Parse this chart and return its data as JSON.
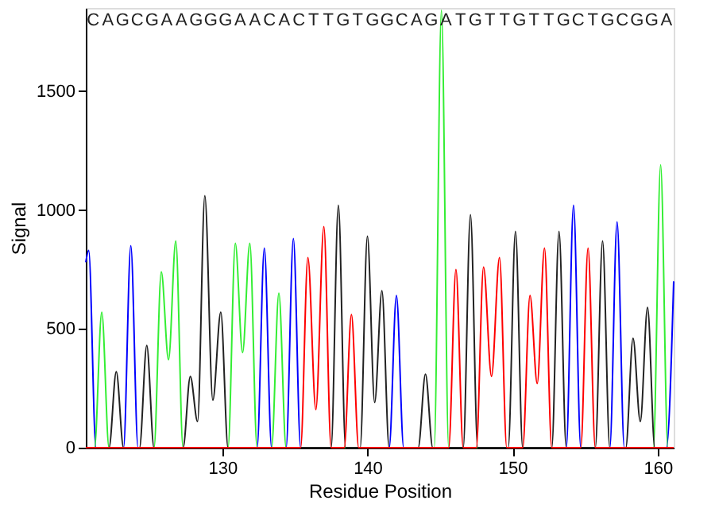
{
  "chart_data": {
    "type": "line",
    "xlabel": "Residue Position",
    "ylabel": "Signal",
    "xlim": [
      120.6,
      161.1
    ],
    "ylim": [
      0,
      1850
    ],
    "xticks": [
      130,
      140,
      150,
      160
    ],
    "yticks": [
      0,
      500,
      {
        "value": 1000,
        "label": "1000"
      },
      {
        "value": 1500,
        "label": "1500"
      }
    ],
    "grid": false,
    "legend": false,
    "line_style": "solid",
    "series": [
      {
        "color": "#0000ff",
        "x": [
          120.6,
          120.8,
          121.3,
          123.2,
          123.7,
          124.2,
          132.4,
          132.9,
          133.4,
          134.4,
          134.9,
          135.4,
          141.5,
          142.0,
          142.5,
          153.7,
          154.2,
          154.7,
          156.7,
          157.2,
          157.7,
          160.6,
          161.1
        ],
        "values": [
          780,
          830,
          0,
          0,
          850,
          0,
          0,
          840,
          0,
          0,
          880,
          0,
          0,
          640,
          0,
          0,
          1020,
          0,
          0,
          950,
          0,
          0,
          700
        ]
      },
      {
        "color": "#33ee33",
        "x": [
          120.6,
          121.2,
          121.7,
          122.2,
          125.3,
          125.8,
          126.3,
          126.8,
          127.3,
          130.4,
          130.9,
          131.4,
          131.9,
          132.4,
          133.4,
          133.9,
          134.4,
          144.6,
          145.1,
          145.6,
          159.7,
          160.2,
          160.7,
          161.1
        ],
        "values": [
          0,
          0,
          570,
          0,
          0,
          740,
          370,
          870,
          0,
          0,
          860,
          400,
          860,
          0,
          0,
          650,
          0,
          0,
          1840,
          0,
          0,
          1190,
          0,
          0
        ]
      },
      {
        "color": "#222222",
        "x": [
          120.6,
          122.2,
          122.7,
          123.2,
          124.3,
          124.8,
          125.3,
          127.3,
          127.8,
          128.3,
          128.8,
          129.35,
          129.9,
          130.4,
          137.5,
          138.0,
          138.5,
          139.5,
          140.0,
          140.5,
          141.0,
          141.5,
          143.5,
          144.0,
          144.5,
          146.6,
          147.1,
          147.6,
          149.7,
          150.2,
          150.7,
          152.7,
          153.2,
          153.7,
          155.7,
          156.2,
          156.7,
          157.8,
          158.3,
          158.8,
          159.3,
          159.8,
          161.1
        ],
        "values": [
          0,
          0,
          320,
          0,
          0,
          430,
          0,
          0,
          300,
          110,
          1060,
          200,
          570,
          0,
          0,
          1020,
          0,
          0,
          890,
          190,
          660,
          0,
          0,
          310,
          0,
          0,
          980,
          0,
          0,
          910,
          0,
          0,
          910,
          0,
          0,
          870,
          0,
          0,
          460,
          110,
          590,
          0,
          0
        ]
      },
      {
        "color": "#ff0000",
        "x": [
          120.6,
          135.4,
          135.9,
          136.45,
          137.0,
          137.5,
          138.4,
          138.9,
          139.4,
          145.6,
          146.1,
          146.6,
          147.5,
          148.0,
          148.55,
          149.1,
          149.6,
          150.7,
          151.2,
          151.7,
          152.2,
          152.7,
          154.7,
          155.2,
          155.7,
          161.1
        ],
        "values": [
          0,
          0,
          800,
          160,
          930,
          0,
          0,
          560,
          0,
          0,
          750,
          0,
          0,
          760,
          300,
          800,
          0,
          0,
          640,
          270,
          840,
          0,
          0,
          840,
          0,
          0
        ]
      }
    ],
    "annotations": [
      "C",
      "A",
      "G",
      "C",
      "G",
      "A",
      "A",
      "G",
      "G",
      "G",
      "A",
      "A",
      "C",
      "A",
      "C",
      "T",
      "T",
      "G",
      "T",
      "G",
      "G",
      "C",
      "A",
      "G",
      "A",
      "T",
      "G",
      "T",
      "T",
      "G",
      "T",
      "T",
      "G",
      "C",
      "T",
      "G",
      "C",
      "G",
      "G",
      "A"
    ]
  }
}
